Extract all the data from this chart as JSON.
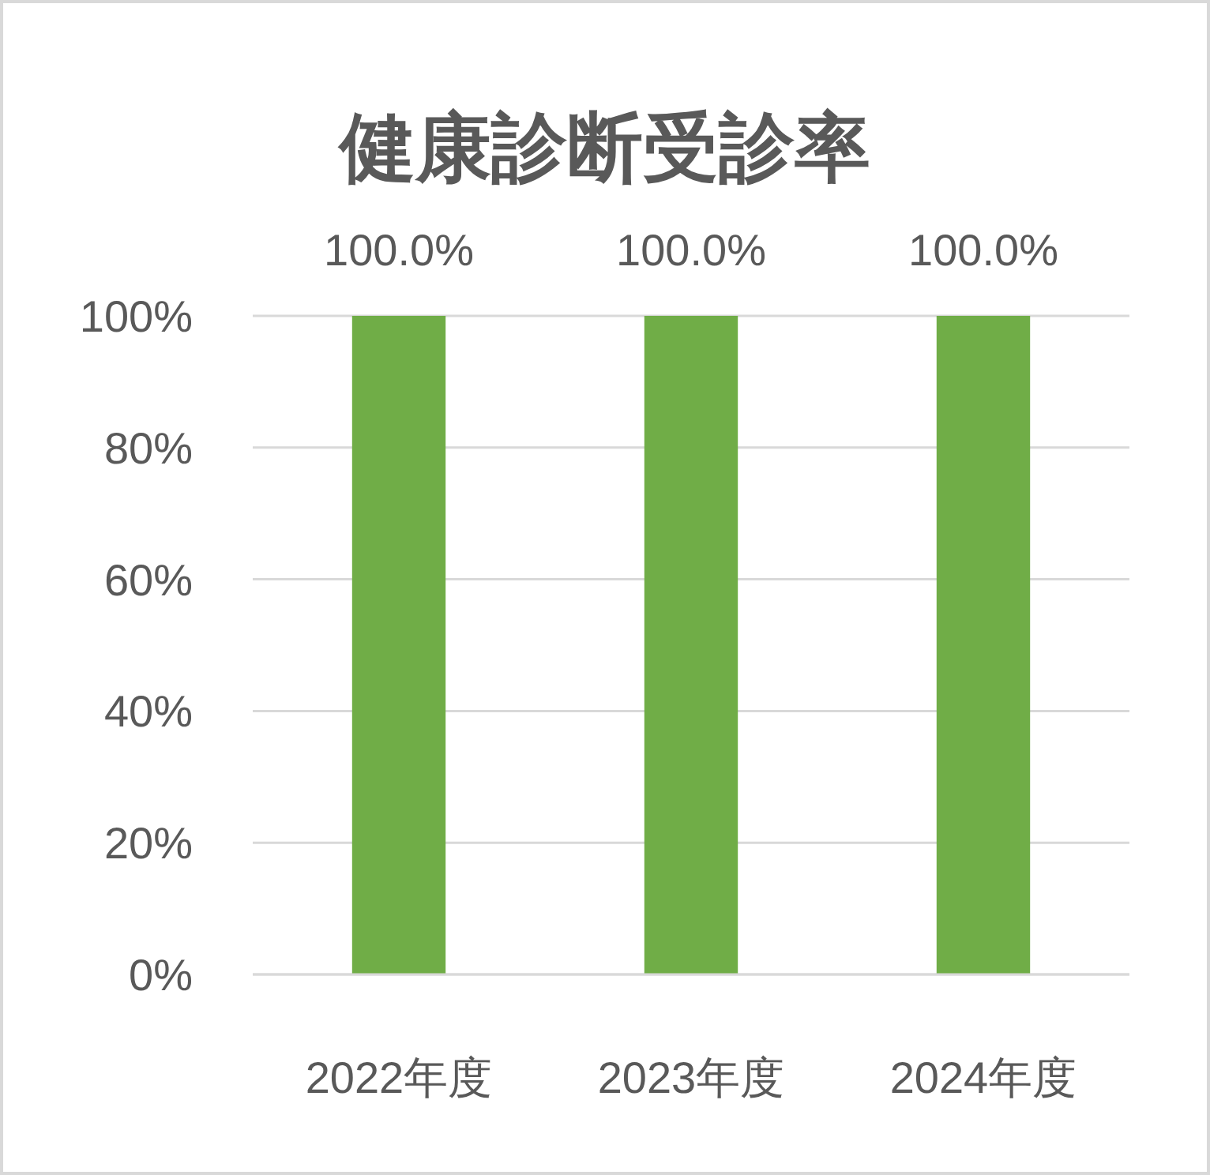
{
  "chart_data": {
    "type": "bar",
    "title": "健康診断受診率",
    "categories": [
      "2022年度",
      "2023年度",
      "2024年度"
    ],
    "values": [
      100,
      100,
      100
    ],
    "value_labels": [
      "100.0%",
      "100.0%",
      "100.0%"
    ],
    "color": "#70ad47",
    "ylim": [
      0,
      100
    ],
    "yticks": [
      {
        "value": 0,
        "label": "0%"
      },
      {
        "value": 20,
        "label": "20%"
      },
      {
        "value": 40,
        "label": "40%"
      },
      {
        "value": 60,
        "label": "60%"
      },
      {
        "value": 80,
        "label": "80%"
      },
      {
        "value": 100,
        "label": "100%"
      }
    ],
    "grid": "y"
  }
}
